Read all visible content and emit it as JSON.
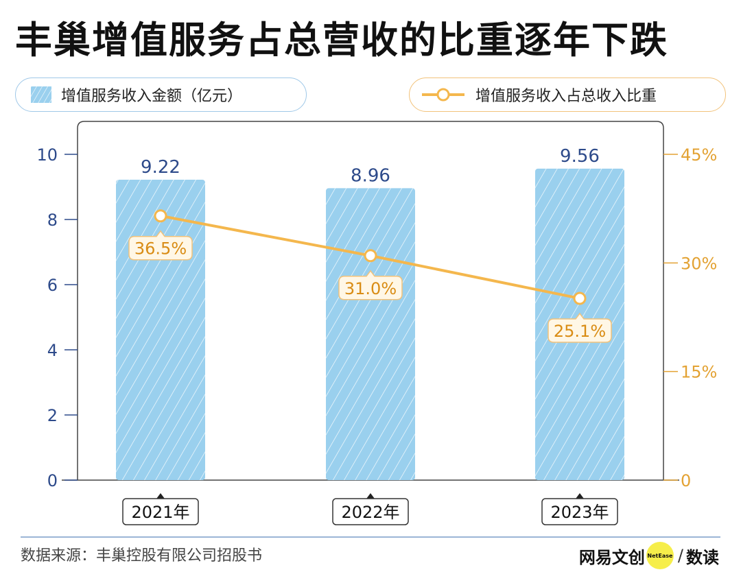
{
  "title": "丰巢增值服务占总营收的比重逐年下跌",
  "legend": {
    "bar_label": "增值服务收入金额（亿元）",
    "line_label": "增值服务收入占总收入比重"
  },
  "colors": {
    "bar_fill": "#9ad0ee",
    "line": "#f4b74d",
    "left_axis": "#2d4a8a",
    "right_axis": "#e3a233",
    "frame": "#444444"
  },
  "chart_data": {
    "type": "bar",
    "categories": [
      "2021年",
      "2022年",
      "2023年"
    ],
    "series": [
      {
        "name": "增值服务收入金额（亿元）",
        "type": "bar",
        "axis": "left",
        "values": [
          9.22,
          8.96,
          9.56
        ],
        "labels": [
          "9.22",
          "8.96",
          "9.56"
        ]
      },
      {
        "name": "增值服务收入占总收入比重",
        "type": "line",
        "axis": "right",
        "values": [
          36.5,
          31.0,
          25.1
        ],
        "labels": [
          "36.5%",
          "31.0%",
          "25.1%"
        ]
      }
    ],
    "y_left": {
      "ylim": [
        0,
        10
      ],
      "ticks": [
        "0",
        "2",
        "4",
        "6",
        "8",
        "10"
      ]
    },
    "y_right": {
      "ylim": [
        0,
        45
      ],
      "ticks": [
        "0",
        "15%",
        "30%",
        "45%"
      ]
    },
    "grid": false
  },
  "footer": {
    "source": "数据来源：丰巢控股有限公司招股书",
    "brand_left": "网易文创",
    "brand_dot": "NetEase",
    "brand_sep": "/",
    "brand_right": "数读"
  }
}
